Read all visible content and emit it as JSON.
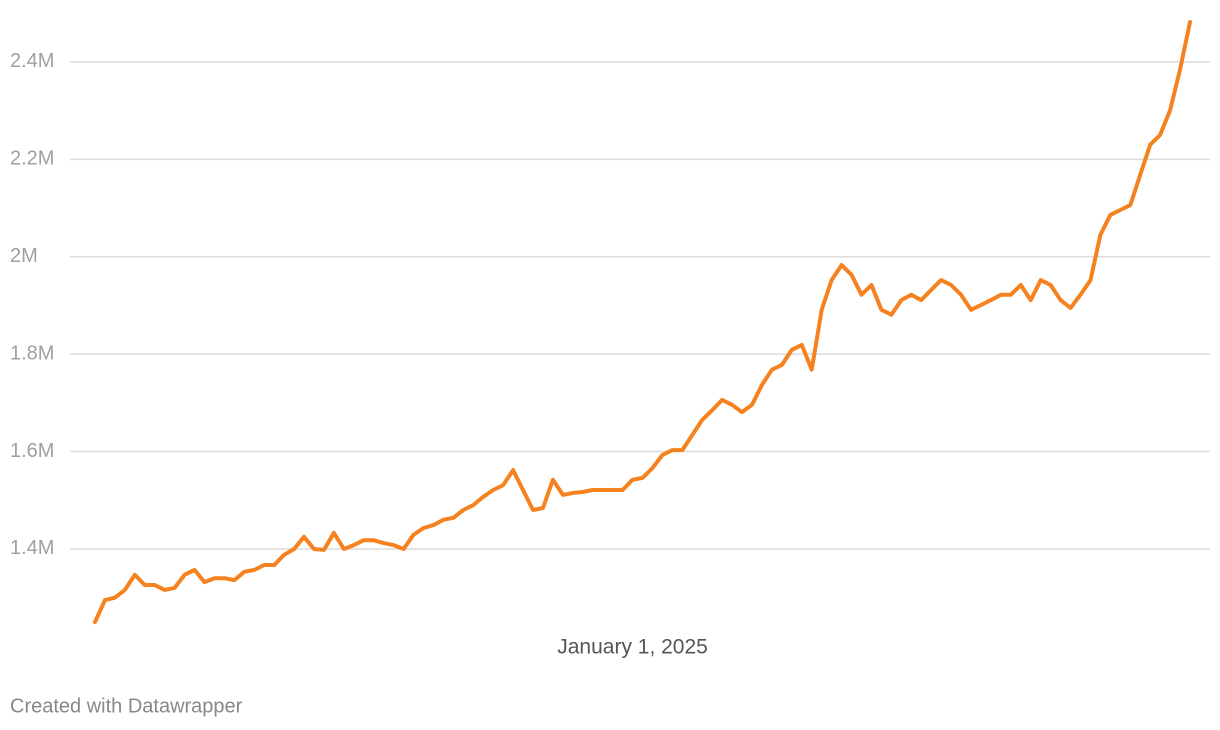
{
  "chart_data": {
    "type": "line",
    "categories": [
      null,
      null,
      null,
      null,
      null,
      null,
      null,
      null,
      null,
      null,
      null,
      null,
      null,
      null,
      null,
      null,
      null,
      null,
      null,
      null,
      null,
      null,
      null,
      null,
      null,
      null,
      null,
      null,
      null,
      null,
      null,
      null,
      null,
      null,
      null,
      null,
      null,
      null,
      null,
      null,
      null,
      null,
      null,
      null,
      null,
      null,
      null,
      null,
      null,
      null,
      null,
      null,
      null,
      null,
      "January 1, 2025",
      null,
      null,
      null,
      null,
      null,
      null,
      null,
      null,
      null,
      null,
      null,
      null,
      null,
      null,
      null,
      null,
      null,
      null,
      null,
      null,
      null,
      null,
      null,
      null,
      null,
      null,
      null,
      null,
      null,
      null,
      null,
      null,
      null,
      null,
      null,
      null,
      null,
      null,
      null,
      null,
      null,
      null,
      null,
      null,
      null,
      null,
      null,
      null,
      null,
      null,
      null,
      null,
      null,
      null,
      null,
      null
    ],
    "values": [
      1250000,
      1295000,
      1300000,
      1316000,
      1347000,
      1326000,
      1326000,
      1316000,
      1320000,
      1347000,
      1357000,
      1332000,
      1340000,
      1340000,
      1336000,
      1353000,
      1357000,
      1367000,
      1367000,
      1388000,
      1400000,
      1425000,
      1400000,
      1398000,
      1433000,
      1400000,
      1408000,
      1418000,
      1418000,
      1412000,
      1408000,
      1400000,
      1429000,
      1443000,
      1449000,
      1460000,
      1464000,
      1480000,
      1490000,
      1507000,
      1521000,
      1531000,
      1562000,
      1521000,
      1480000,
      1484000,
      1542000,
      1511000,
      1515000,
      1517000,
      1521000,
      1521000,
      1521000,
      1521000,
      1542000,
      1546000,
      1566000,
      1593000,
      1603000,
      1603000,
      1634000,
      1665000,
      1685000,
      1706000,
      1696000,
      1681000,
      1696000,
      1737000,
      1768000,
      1778000,
      1809000,
      1819000,
      1768000,
      1891000,
      1952000,
      1983000,
      1963000,
      1922000,
      1942000,
      1891000,
      1881000,
      1911000,
      1922000,
      1911000,
      1932000,
      1952000,
      1942000,
      1922000,
      1891000,
      1901000,
      1911000,
      1922000,
      1922000,
      1942000,
      1911000,
      1952000,
      1942000,
      1911000,
      1895000,
      1922000,
      1952000,
      2045000,
      2086000,
      2096000,
      2106000,
      2168000,
      2230000,
      2250000,
      2301000,
      2384000,
      2482000
    ],
    "color": "#f5821f",
    "ylim": [
      1250000,
      2480000
    ],
    "yticks": [
      {
        "value": 1400000,
        "label": "1.4M"
      },
      {
        "value": 1600000,
        "label": "1.6M"
      },
      {
        "value": 1800000,
        "label": "1.8M"
      },
      {
        "value": 2000000,
        "label": "2M"
      },
      {
        "value": 2200000,
        "label": "2.2M"
      },
      {
        "value": 2400000,
        "label": "2.4M"
      }
    ],
    "grid": true,
    "footer": "Created with Datawrapper"
  }
}
